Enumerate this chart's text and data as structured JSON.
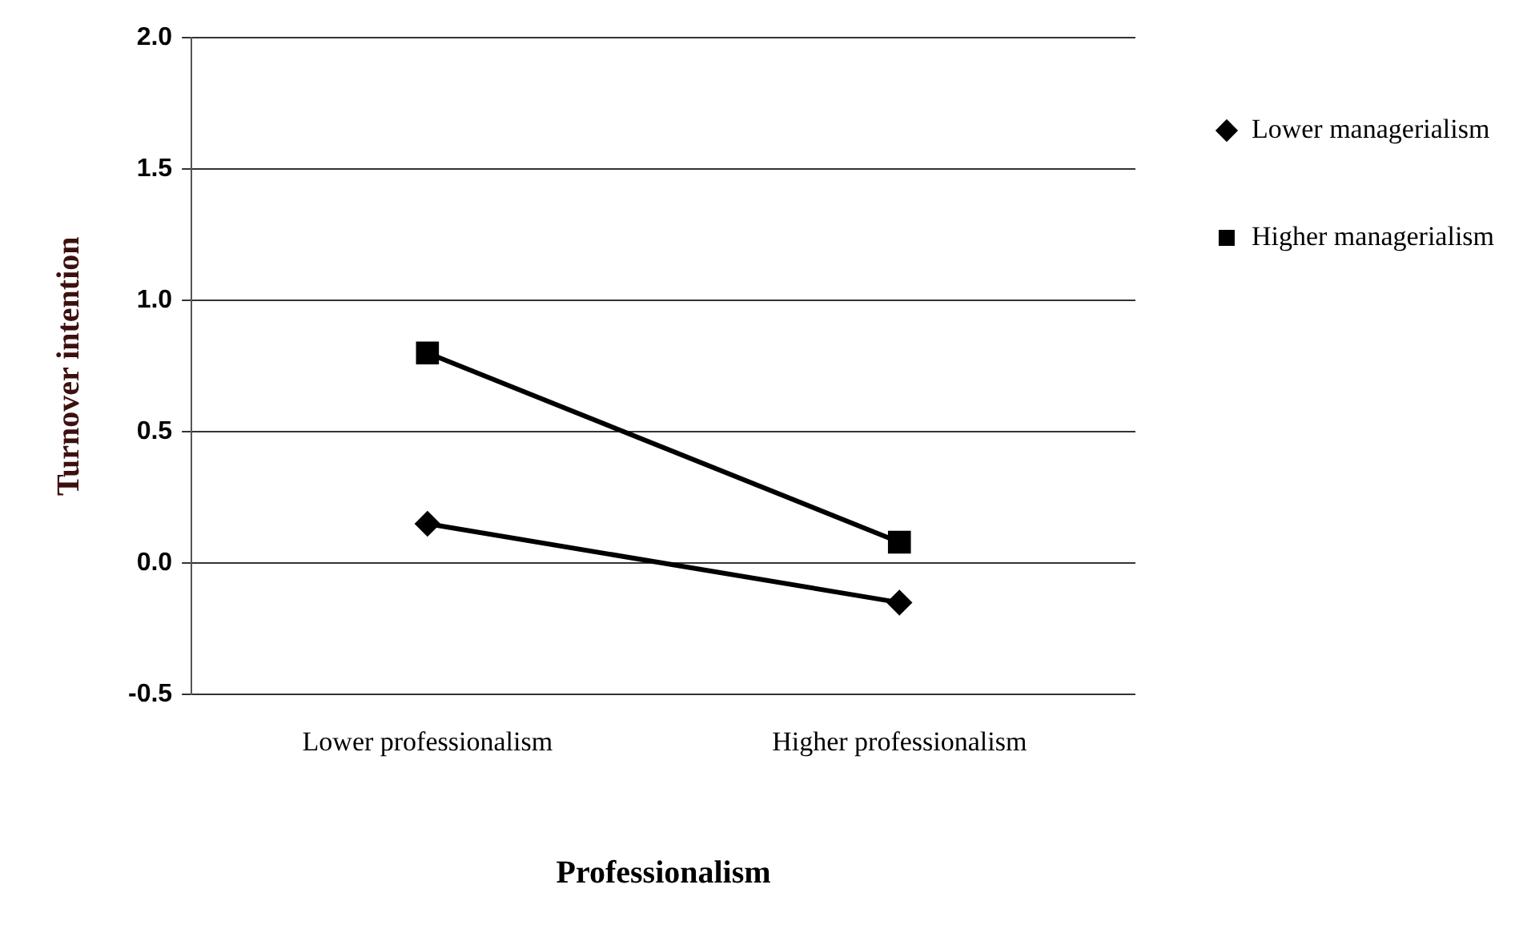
{
  "chart_data": {
    "type": "line",
    "xlabel": "Professionalism",
    "ylabel": "Turnover intention",
    "categories": [
      "Lower professionalism",
      "Higher professionalism"
    ],
    "series": [
      {
        "name": "Lower managerialism",
        "color": "#000000",
        "marker": "diamond",
        "values": [
          0.15,
          -0.15
        ]
      },
      {
        "name": "Higher managerialism",
        "color": "#000000",
        "marker": "square",
        "values": [
          0.8,
          0.08
        ]
      }
    ],
    "ylim": [
      -0.5,
      2.0
    ],
    "yticks": [
      {
        "value": -0.5,
        "label": "-0.5"
      },
      {
        "value": 0,
        "label": "0.0"
      },
      {
        "value": 0.5,
        "label": "0.5"
      },
      {
        "value": 1,
        "label": "1.0"
      },
      {
        "value": 1.5,
        "label": "1.5"
      },
      {
        "value": 2,
        "label": "2.0"
      }
    ],
    "grid": "y",
    "legend": "right",
    "line_style": "solid"
  }
}
